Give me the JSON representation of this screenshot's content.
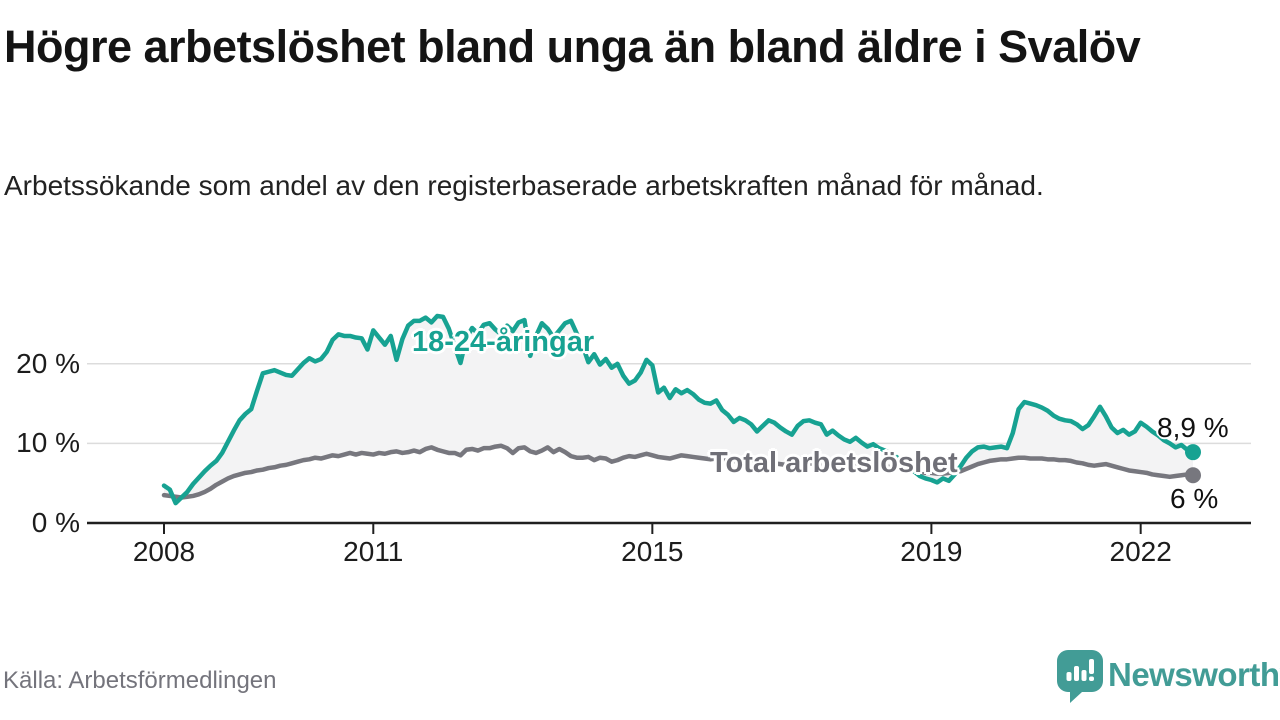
{
  "header": {
    "title": "Högre arbetslöshet bland unga än bland äldre i Svalöv",
    "subtitle": "Arbetssökande som andel av den registerbaserade arbetskraften månad för månad."
  },
  "footer": {
    "source": "Källa: Arbetsförmedlingen",
    "brand": "Newsworthy"
  },
  "colors": {
    "accent_teal": "#17a292",
    "line_gray": "#77777e",
    "total_label_gray": "#6f6f77",
    "band_fill": "#f3f3f4",
    "grid": "#dcdcdc",
    "axis": "#1f1f1f",
    "text": "#141414",
    "muted_text": "#74747c",
    "logo_teal": "#429c96"
  },
  "chart_data": {
    "type": "line",
    "title": "Högre arbetslöshet bland unga än bland äldre i Svalöv",
    "subtitle": "Arbetssökande som andel av den registerbaserade arbetskraften månad för månad.",
    "source": "Källa: Arbetsförmedlingen",
    "x_unit": "month",
    "x_start": "2008-01",
    "x_end": "2022-10",
    "x_ticks": [
      2008,
      2011,
      2015,
      2019,
      2022
    ],
    "y_ticks": [
      {
        "value": 0,
        "label": "0 %"
      },
      {
        "value": 10,
        "label": "10 %"
      },
      {
        "value": 20,
        "label": "20 %"
      }
    ],
    "ylim": [
      0,
      27
    ],
    "grid": "horizontal-only",
    "legend": "inline-labels-on-lines",
    "band_between_series": true,
    "series": [
      {
        "name": "18-24-åringar",
        "color": "#17a292",
        "end_label": "8,9 %",
        "last_value": 8.9,
        "values": [
          4.7,
          4.2,
          2.5,
          3.2,
          3.9,
          4.9,
          5.7,
          6.5,
          7.2,
          7.8,
          8.8,
          10.2,
          11.6,
          12.9,
          13.7,
          14.3,
          16.6,
          18.8,
          19.0,
          19.2,
          18.9,
          18.6,
          18.5,
          19.3,
          20.1,
          20.7,
          20.3,
          20.6,
          21.5,
          23.0,
          23.7,
          23.5,
          23.5,
          23.3,
          23.2,
          21.8,
          24.2,
          23.3,
          22.4,
          23.5,
          20.5,
          23.1,
          24.8,
          25.4,
          25.4,
          25.8,
          25.2,
          26.0,
          25.9,
          24.4,
          22.2,
          20.1,
          23.2,
          24.5,
          23.8,
          24.9,
          25.1,
          24.3,
          23.7,
          24.8,
          24.1,
          25.2,
          25.5,
          21.0,
          23.5,
          25.1,
          24.4,
          23.3,
          24.2,
          25.1,
          25.4,
          23.8,
          22.3,
          20.2,
          21.2,
          19.9,
          20.6,
          19.5,
          20.0,
          18.5,
          17.5,
          17.9,
          18.9,
          20.5,
          19.8,
          16.4,
          17.0,
          15.7,
          16.8,
          16.3,
          16.7,
          16.2,
          15.5,
          15.1,
          15.0,
          15.4,
          14.2,
          13.6,
          12.7,
          13.2,
          12.9,
          12.4,
          11.5,
          12.2,
          12.9,
          12.6,
          12.0,
          11.5,
          11.1,
          12.2,
          12.8,
          12.9,
          12.6,
          12.4,
          11.1,
          11.6,
          11.0,
          10.5,
          10.2,
          10.7,
          10.1,
          9.6,
          9.9,
          9.4,
          9.1,
          8.7,
          8.3,
          7.7,
          7.1,
          6.5,
          5.9,
          5.6,
          5.4,
          5.1,
          5.6,
          5.3,
          6.1,
          7.1,
          8.2,
          9.0,
          9.5,
          9.6,
          9.4,
          9.5,
          9.6,
          9.4,
          11.3,
          14.3,
          15.2,
          15.0,
          14.8,
          14.5,
          14.1,
          13.5,
          13.1,
          12.9,
          12.8,
          12.4,
          11.8,
          12.3,
          13.4,
          14.6,
          13.4,
          12.0,
          11.3,
          11.7,
          11.1,
          11.5,
          12.6,
          12.1,
          11.5,
          11.0,
          10.4,
          10.0,
          9.5,
          9.8,
          9.2,
          8.9
        ]
      },
      {
        "name": "Total arbetslöshet",
        "color": "#77777e",
        "end_label": "6 %",
        "last_value": 6.0,
        "values": [
          3.5,
          3.4,
          3.3,
          3.2,
          3.3,
          3.4,
          3.6,
          3.9,
          4.3,
          4.8,
          5.2,
          5.6,
          5.9,
          6.1,
          6.3,
          6.4,
          6.6,
          6.7,
          6.9,
          7.0,
          7.2,
          7.3,
          7.5,
          7.7,
          7.9,
          8.0,
          8.2,
          8.1,
          8.3,
          8.5,
          8.4,
          8.6,
          8.8,
          8.6,
          8.8,
          8.7,
          8.6,
          8.8,
          8.7,
          8.9,
          9.0,
          8.8,
          8.9,
          9.1,
          8.9,
          9.3,
          9.5,
          9.2,
          9.0,
          8.8,
          8.8,
          8.5,
          9.2,
          9.3,
          9.1,
          9.4,
          9.4,
          9.6,
          9.7,
          9.4,
          8.8,
          9.4,
          9.5,
          9.0,
          8.8,
          9.1,
          9.5,
          8.9,
          9.3,
          8.9,
          8.4,
          8.2,
          8.2,
          8.3,
          7.9,
          8.2,
          8.1,
          7.7,
          7.9,
          8.2,
          8.4,
          8.3,
          8.5,
          8.7,
          8.5,
          8.3,
          8.2,
          8.1,
          8.3,
          8.5,
          8.4,
          8.3,
          8.2,
          8.1,
          8.0,
          8.1,
          8.0,
          7.9,
          7.8,
          7.7,
          7.6,
          7.5,
          7.4,
          7.4,
          7.5,
          7.5,
          7.4,
          7.3,
          7.3,
          7.4,
          7.5,
          7.5,
          7.4,
          7.3,
          7.2,
          7.3,
          7.4,
          7.4,
          7.5,
          7.5,
          7.6,
          7.5,
          7.4,
          7.3,
          7.2,
          7.0,
          6.9,
          6.8,
          6.6,
          6.5,
          6.4,
          6.3,
          6.3,
          6.2,
          6.2,
          6.3,
          6.4,
          6.5,
          6.8,
          7.1,
          7.4,
          7.6,
          7.8,
          7.9,
          8.0,
          8.0,
          8.1,
          8.2,
          8.2,
          8.1,
          8.1,
          8.1,
          8.0,
          8.0,
          7.9,
          7.9,
          7.8,
          7.6,
          7.5,
          7.3,
          7.2,
          7.3,
          7.4,
          7.2,
          7.0,
          6.8,
          6.6,
          6.5,
          6.4,
          6.3,
          6.1,
          6.0,
          5.9,
          5.8,
          5.9,
          6.0,
          6.1,
          6.0
        ]
      }
    ]
  }
}
